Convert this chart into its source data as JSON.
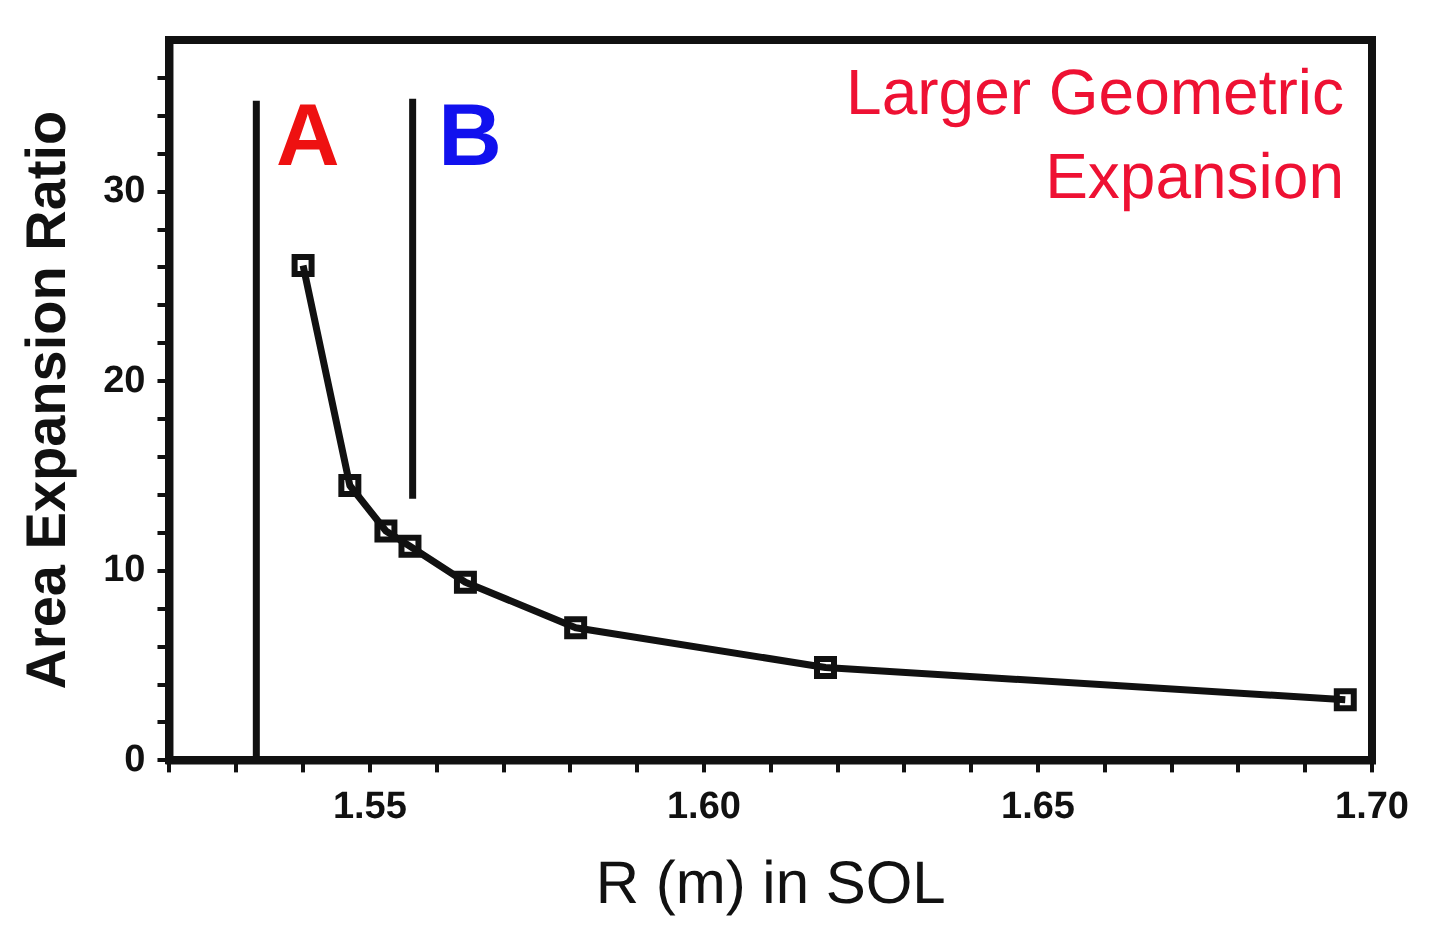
{
  "chart_data": {
    "type": "line",
    "xlabel": "R (m) in SOL",
    "ylabel": "Area Expansion Ratio",
    "xlim": [
      1.52,
      1.7
    ],
    "ylim": [
      0,
      38
    ],
    "xticks": [
      {
        "value": 1.52,
        "label": null
      },
      {
        "value": 1.53,
        "label": null
      },
      {
        "value": 1.54,
        "label": null
      },
      {
        "value": 1.55,
        "label": "1.55"
      },
      {
        "value": 1.56,
        "label": null
      },
      {
        "value": 1.57,
        "label": null
      },
      {
        "value": 1.58,
        "label": null
      },
      {
        "value": 1.59,
        "label": null
      },
      {
        "value": 1.6,
        "label": "1.60"
      },
      {
        "value": 1.61,
        "label": null
      },
      {
        "value": 1.62,
        "label": null
      },
      {
        "value": 1.63,
        "label": null
      },
      {
        "value": 1.64,
        "label": null
      },
      {
        "value": 1.65,
        "label": "1.65"
      },
      {
        "value": 1.66,
        "label": null
      },
      {
        "value": 1.67,
        "label": null
      },
      {
        "value": 1.68,
        "label": null
      },
      {
        "value": 1.69,
        "label": null
      },
      {
        "value": 1.7,
        "label": "1.70"
      }
    ],
    "yticks": [
      0,
      {
        "value": 2,
        "label": null
      },
      {
        "value": 4,
        "label": null
      },
      {
        "value": 6,
        "label": null
      },
      {
        "value": 8,
        "label": null
      },
      10,
      {
        "value": 12,
        "label": null
      },
      {
        "value": 14,
        "label": null
      },
      {
        "value": 16,
        "label": null
      },
      {
        "value": 18,
        "label": null
      },
      20,
      {
        "value": 22,
        "label": null
      },
      {
        "value": 24,
        "label": null
      },
      {
        "value": 26,
        "label": null
      },
      {
        "value": 28,
        "label": null
      },
      30,
      {
        "value": 32,
        "label": null
      },
      {
        "value": 34,
        "label": null
      },
      {
        "value": 36,
        "label": null
      }
    ],
    "grid": false,
    "legend": false,
    "marker": "square",
    "line_style": "solid",
    "series": [
      {
        "color": "#111111",
        "x": [
          1.54,
          1.547,
          1.5524,
          1.556,
          1.5643,
          1.5808,
          1.6182,
          1.696
        ],
        "values": [
          26.1,
          14.5,
          12.1,
          11.3,
          9.4,
          7.0,
          4.9,
          3.2
        ]
      },
      {
        "type": "line",
        "marker": "none",
        "color": "#111111",
        "x": [
          1.533,
          1.533
        ],
        "values": [
          0,
          34.8
        ]
      },
      {
        "type": "line",
        "marker": "none",
        "color": "#111111",
        "x": [
          1.5564,
          1.5564
        ],
        "values": [
          13.8,
          34.9
        ]
      }
    ],
    "annotations": [
      "A",
      "B",
      "Larger Geometric\nExpansion"
    ]
  }
}
